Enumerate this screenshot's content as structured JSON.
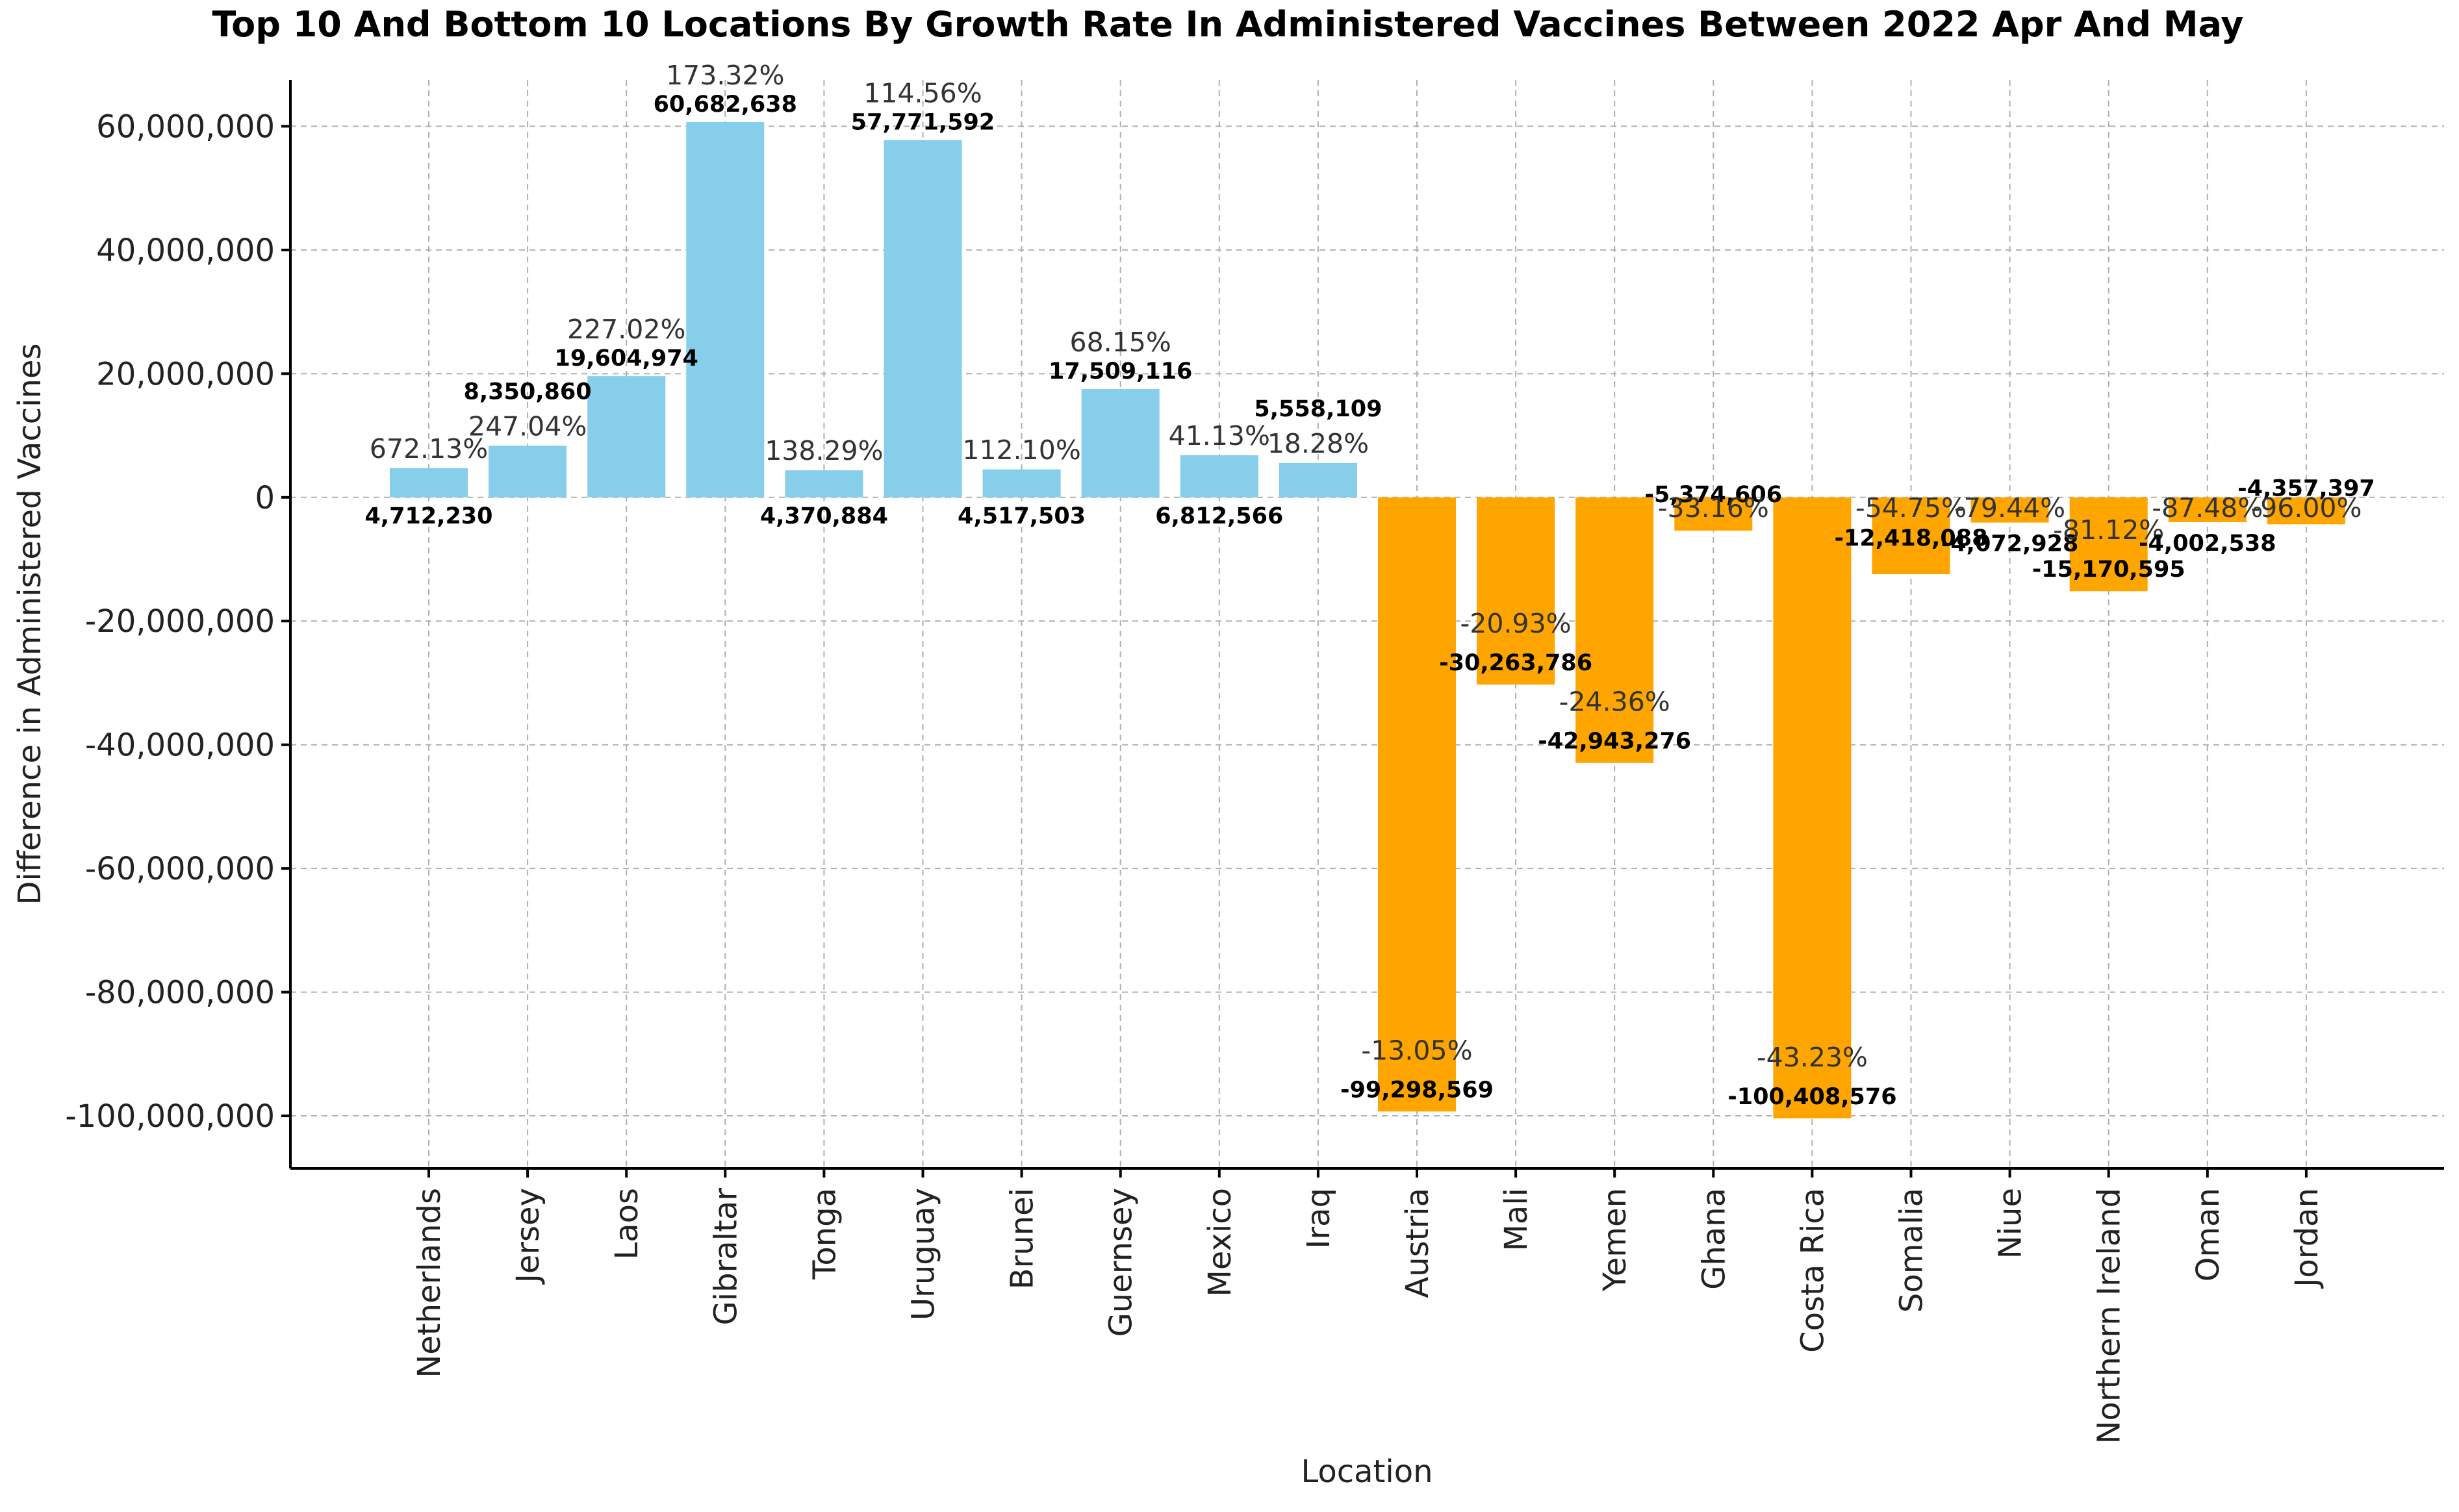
{
  "chart_data": {
    "type": "bar",
    "title": "Top 10 And Bottom 10 Locations By Growth Rate In Administered Vaccines Between 2022 Apr And May",
    "xlabel": "Location",
    "ylabel": "Difference in Administered Vaccines",
    "ylim": [
      -108500000,
      67500000
    ],
    "yticks": [
      60000000,
      40000000,
      20000000,
      0,
      -20000000,
      -40000000,
      -60000000,
      -80000000,
      -100000000
    ],
    "ytick_labels": [
      "60,000,000",
      "40,000,000",
      "20,000,000",
      "0",
      "-20,000,000",
      "-40,000,000",
      "-60,000,000",
      "-80,000,000",
      "-100,000,000"
    ],
    "grid": true,
    "legend": "none",
    "positive_color": "#87CEEB",
    "negative_color": "#FFA500",
    "categories": [
      "Netherlands",
      "Jersey",
      "Laos",
      "Gibraltar",
      "Tonga",
      "Uruguay",
      "Brunei",
      "Guernsey",
      "Mexico",
      "Iraq",
      "Austria",
      "Mali",
      "Yemen",
      "Ghana",
      "Costa Rica",
      "Somalia",
      "Niue",
      "Northern Ireland",
      "Oman",
      "Jordan"
    ],
    "values": [
      4712230,
      8350860,
      19604974,
      60682638,
      4370884,
      57771592,
      4517503,
      17509116,
      6812566,
      5558109,
      -99298569,
      -30263786,
      -42943276,
      -5374606,
      -100408576,
      -12418088,
      -4072928,
      -15170595,
      -4002538,
      -4357397
    ],
    "value_labels": [
      "4,712,230",
      "8,350,860",
      "19,604,974",
      "60,682,638",
      "4,370,884",
      "57,771,592",
      "4,517,503",
      "17,509,116",
      "6,812,566",
      "5,558,109",
      "-99,298,569",
      "-30,263,786",
      "-42,943,276",
      "-5,374,606",
      "-100,408,576",
      "-12,418,088",
      "-4,072,928",
      "-15,170,595",
      "-4,002,538",
      "-4,357,397"
    ],
    "growth_rates": [
      "672.13%",
      "247.04%",
      "227.02%",
      "173.32%",
      "138.29%",
      "114.56%",
      "112.10%",
      "68.15%",
      "41.13%",
      "18.28%",
      "-13.05%",
      "-20.93%",
      "-24.36%",
      "-33.16%",
      "-43.23%",
      "-54.75%",
      "-79.44%",
      "-81.12%",
      "-87.48%",
      "-96.00%"
    ]
  }
}
